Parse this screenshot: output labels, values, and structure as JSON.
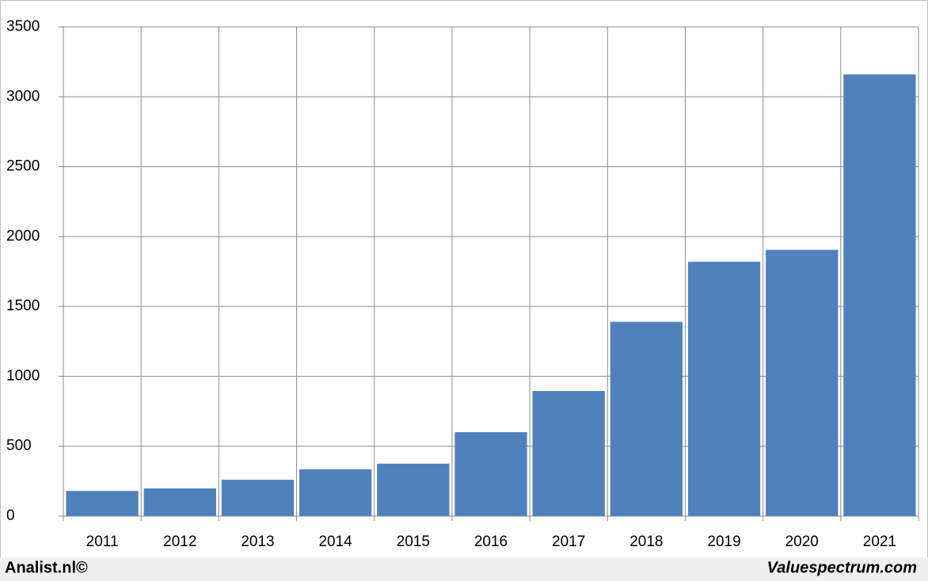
{
  "chart_data": {
    "type": "bar",
    "categories": [
      "2011",
      "2012",
      "2013",
      "2014",
      "2015",
      "2016",
      "2017",
      "2018",
      "2019",
      "2020",
      "2021"
    ],
    "values": [
      180,
      198,
      260,
      335,
      375,
      600,
      895,
      1390,
      1820,
      1905,
      3160
    ],
    "color": "#4f81bd",
    "ylim": [
      0,
      3500
    ],
    "yticks": [
      0,
      500,
      1000,
      1500,
      2000,
      2500,
      3000,
      3500
    ],
    "grid": true,
    "footer_left": "Analist.nl©",
    "footer_right": "Valuespectrum.com"
  }
}
